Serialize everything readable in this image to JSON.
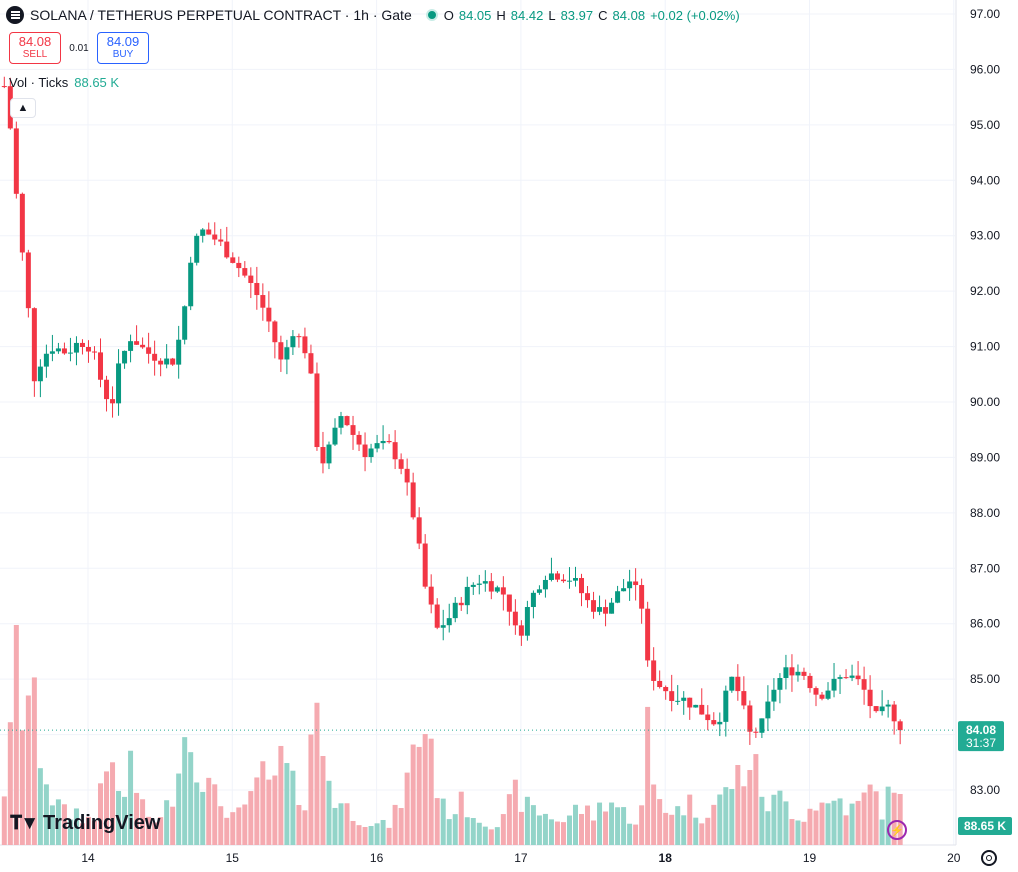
{
  "header": {
    "title": "SOLANA / TETHERUS PERPETUAL CONTRACT · 1h · Gate",
    "ohlc": [
      {
        "k": "O",
        "v": "84.05"
      },
      {
        "k": "H",
        "v": "84.42"
      },
      {
        "k": "L",
        "v": "83.97"
      },
      {
        "k": "C",
        "v": "84.08"
      },
      {
        "k": "",
        "v": "+0.02 (+0.02%)"
      }
    ]
  },
  "trade": {
    "sell_price": "84.08",
    "sell_label": "SELL",
    "spread": "0.01",
    "buy_price": "84.09",
    "buy_label": "BUY"
  },
  "volume": {
    "label": "Vol · Ticks",
    "value": "88.65 K",
    "axis_badge": "88.65 K"
  },
  "price_badge": {
    "price": "84.08",
    "countdown": "31:37"
  },
  "branding": {
    "logo_text": "TradingView"
  },
  "colors": {
    "up": "#089981",
    "down": "#f23645",
    "vol_up": "#93d4c9",
    "vol_down": "#f5aab0",
    "badge": "#22ab94"
  },
  "chart_data": {
    "type": "candlestick",
    "title": "SOLANA / TETHERUS PERPETUAL CONTRACT · 1h · Gate",
    "ylim": [
      82.8,
      97.05
    ],
    "y_ticks": [
      "97.00",
      "96.00",
      "95.00",
      "94.00",
      "93.00",
      "92.00",
      "91.00",
      "90.00",
      "89.00",
      "88.00",
      "87.00",
      "86.00",
      "85.00",
      "84.00",
      "83.00"
    ],
    "x_ticks": [
      "14",
      "15",
      "16",
      "17",
      "18",
      "19",
      "20"
    ],
    "x_range": [
      13.42,
      20.1
    ],
    "last_price": 84.08,
    "last_candle_x": 19.63,
    "price_path": [
      [
        13.42,
        95.7
      ],
      [
        13.47,
        94.8
      ],
      [
        13.52,
        93.2
      ],
      [
        13.58,
        91.9
      ],
      [
        13.62,
        90.4
      ],
      [
        13.68,
        90.8
      ],
      [
        13.75,
        91.0
      ],
      [
        13.85,
        90.9
      ],
      [
        13.95,
        91.1
      ],
      [
        14.02,
        91.0
      ],
      [
        14.1,
        90.3
      ],
      [
        14.16,
        89.9
      ],
      [
        14.22,
        90.7
      ],
      [
        14.3,
        91.2
      ],
      [
        14.4,
        90.9
      ],
      [
        14.5,
        90.8
      ],
      [
        14.58,
        90.7
      ],
      [
        14.65,
        91.3
      ],
      [
        14.72,
        92.8
      ],
      [
        14.8,
        93.1
      ],
      [
        14.9,
        92.9
      ],
      [
        15.0,
        92.6
      ],
      [
        15.08,
        92.3
      ],
      [
        15.18,
        91.9
      ],
      [
        15.26,
        91.4
      ],
      [
        15.34,
        90.7
      ],
      [
        15.42,
        91.3
      ],
      [
        15.5,
        91.0
      ],
      [
        15.56,
        90.2
      ],
      [
        15.6,
        88.8
      ],
      [
        15.68,
        89.2
      ],
      [
        15.76,
        89.8
      ],
      [
        15.84,
        89.4
      ],
      [
        15.92,
        89.1
      ],
      [
        16.0,
        89.2
      ],
      [
        16.1,
        89.2
      ],
      [
        16.18,
        88.8
      ],
      [
        16.26,
        87.9
      ],
      [
        16.34,
        86.6
      ],
      [
        16.42,
        85.9
      ],
      [
        16.5,
        86.1
      ],
      [
        16.6,
        86.5
      ],
      [
        16.7,
        86.8
      ],
      [
        16.8,
        86.7
      ],
      [
        16.9,
        86.5
      ],
      [
        16.98,
        85.7
      ],
      [
        17.06,
        86.4
      ],
      [
        17.16,
        86.9
      ],
      [
        17.26,
        86.9
      ],
      [
        17.36,
        86.8
      ],
      [
        17.46,
        86.4
      ],
      [
        17.56,
        86.2
      ],
      [
        17.66,
        86.5
      ],
      [
        17.76,
        86.8
      ],
      [
        17.84,
        86.3
      ],
      [
        17.88,
        85.2
      ],
      [
        17.96,
        84.9
      ],
      [
        18.06,
        84.7
      ],
      [
        18.16,
        84.6
      ],
      [
        18.26,
        84.4
      ],
      [
        18.36,
        84.2
      ],
      [
        18.46,
        85.0
      ],
      [
        18.52,
        84.7
      ],
      [
        18.58,
        84.0
      ],
      [
        18.66,
        84.1
      ],
      [
        18.76,
        84.9
      ],
      [
        18.86,
        85.2
      ],
      [
        18.96,
        85.1
      ],
      [
        19.06,
        84.7
      ],
      [
        19.16,
        84.9
      ],
      [
        19.26,
        85.1
      ],
      [
        19.36,
        84.9
      ],
      [
        19.46,
        84.3
      ],
      [
        19.56,
        84.5
      ],
      [
        19.63,
        84.08
      ]
    ],
    "volume": {
      "label": "Vol · Ticks",
      "ylim": [
        0,
        230
      ],
      "ticks": [
        [
          13.42,
          60
        ],
        [
          13.46,
          100
        ],
        [
          13.5,
          210
        ],
        [
          13.54,
          140
        ],
        [
          13.58,
          160
        ],
        [
          13.62,
          145
        ],
        [
          13.66,
          105
        ],
        [
          13.7,
          80
        ],
        [
          13.75,
          50
        ],
        [
          13.8,
          40
        ],
        [
          13.86,
          30
        ],
        [
          13.92,
          35
        ],
        [
          13.98,
          28
        ],
        [
          14.05,
          25
        ],
        [
          14.12,
          105
        ],
        [
          14.18,
          60
        ],
        [
          14.24,
          45
        ],
        [
          14.3,
          90
        ],
        [
          14.36,
          40
        ],
        [
          14.42,
          30
        ],
        [
          14.5,
          25
        ],
        [
          14.58,
          50
        ],
        [
          14.65,
          115
        ],
        [
          14.72,
          110
        ],
        [
          14.8,
          70
        ],
        [
          14.88,
          50
        ],
        [
          14.95,
          40
        ],
        [
          15.02,
          30
        ],
        [
          15.1,
          35
        ],
        [
          15.18,
          80
        ],
        [
          15.26,
          55
        ],
        [
          15.34,
          90
        ],
        [
          15.42,
          60
        ],
        [
          15.5,
          45
        ],
        [
          15.56,
          150
        ],
        [
          15.62,
          105
        ],
        [
          15.7,
          50
        ],
        [
          15.78,
          40
        ],
        [
          15.86,
          30
        ],
        [
          15.94,
          25
        ],
        [
          16.02,
          20
        ],
        [
          16.1,
          22
        ],
        [
          16.2,
          60
        ],
        [
          16.28,
          110
        ],
        [
          16.36,
          130
        ],
        [
          16.44,
          40
        ],
        [
          16.52,
          35
        ],
        [
          16.6,
          45
        ],
        [
          16.68,
          30
        ],
        [
          16.76,
          25
        ],
        [
          16.86,
          20
        ],
        [
          16.96,
          55
        ],
        [
          17.04,
          40
        ],
        [
          17.12,
          35
        ],
        [
          17.2,
          30
        ],
        [
          17.3,
          25
        ],
        [
          17.4,
          40
        ],
        [
          17.5,
          30
        ],
        [
          17.6,
          50
        ],
        [
          17.7,
          35
        ],
        [
          17.8,
          25
        ],
        [
          17.86,
          45
        ],
        [
          17.88,
          130
        ],
        [
          17.92,
          60
        ],
        [
          18.0,
          40
        ],
        [
          18.08,
          35
        ],
        [
          18.16,
          45
        ],
        [
          18.24,
          30
        ],
        [
          18.32,
          40
        ],
        [
          18.4,
          50
        ],
        [
          18.48,
          70
        ],
        [
          18.54,
          75
        ],
        [
          18.6,
          90
        ],
        [
          18.66,
          60
        ],
        [
          18.72,
          40
        ],
        [
          18.8,
          50
        ],
        [
          18.88,
          35
        ],
        [
          18.96,
          30
        ],
        [
          19.04,
          45
        ],
        [
          19.12,
          40
        ],
        [
          19.2,
          50
        ],
        [
          19.28,
          35
        ],
        [
          19.36,
          45
        ],
        [
          19.44,
          60
        ],
        [
          19.52,
          30
        ],
        [
          19.58,
          75
        ],
        [
          19.62,
          45
        ]
      ]
    },
    "grid": true
  }
}
